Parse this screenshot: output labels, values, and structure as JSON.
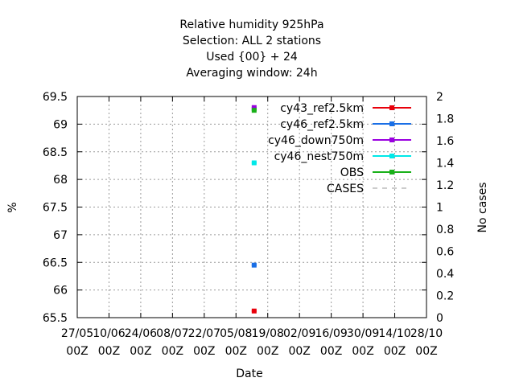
{
  "chart_data": {
    "type": "scatter",
    "title_lines": [
      "Relative humidity 925hPa",
      "Selection: ALL      2 stations",
      "Used {00} + 24",
      "Averaging window: 24h"
    ],
    "xlabel": "Date",
    "ylabel": "%",
    "y2label": "No cases",
    "ylim": [
      65.5,
      69.5
    ],
    "y2lim": [
      0,
      2
    ],
    "yticks": [
      "65.5",
      "66",
      "66.5",
      "67",
      "67.5",
      "68",
      "68.5",
      "69",
      "69.5"
    ],
    "y2ticks": [
      "0",
      "0.2",
      "0.4",
      "0.6",
      "0.8",
      "1",
      "1.2",
      "1.4",
      "1.6",
      "1.8",
      "2"
    ],
    "xticks": [
      {
        "line1": "27/05",
        "line2": "00Z"
      },
      {
        "line1": "10/06",
        "line2": "00Z"
      },
      {
        "line1": "24/06",
        "line2": "00Z"
      },
      {
        "line1": "08/07",
        "line2": "00Z"
      },
      {
        "line1": "22/07",
        "line2": "00Z"
      },
      {
        "line1": "05/08",
        "line2": "00Z"
      },
      {
        "line1": "19/08",
        "line2": "00Z"
      },
      {
        "line1": "02/09",
        "line2": "00Z"
      },
      {
        "line1": "16/09",
        "line2": "00Z"
      },
      {
        "line1": "30/09",
        "line2": "00Z"
      },
      {
        "line1": "14/10",
        "line2": "00Z"
      },
      {
        "line1": "28/10",
        "line2": "00Z"
      }
    ],
    "grid": true,
    "legend_position": "top-right",
    "series": [
      {
        "name": "cy43_ref2.5km",
        "color": "#e8000b",
        "points": [
          {
            "x": "13/08",
            "y": 65.62
          }
        ]
      },
      {
        "name": "cy46_ref2.5km",
        "color": "#1a6fe6",
        "points": [
          {
            "x": "13/08",
            "y": 66.45
          }
        ]
      },
      {
        "name": "cy46_down750m",
        "color": "#9a00e0",
        "points": [
          {
            "x": "13/08",
            "y": 69.3
          }
        ]
      },
      {
        "name": "cy46_nest750m",
        "color": "#00e8e8",
        "points": [
          {
            "x": "13/08",
            "y": 68.3
          }
        ]
      },
      {
        "name": "OBS",
        "color": "#19b019",
        "points": [
          {
            "x": "13/08",
            "y": 69.25
          }
        ]
      },
      {
        "name": "CASES",
        "color": "#999999",
        "dashed": true,
        "points": []
      }
    ]
  }
}
